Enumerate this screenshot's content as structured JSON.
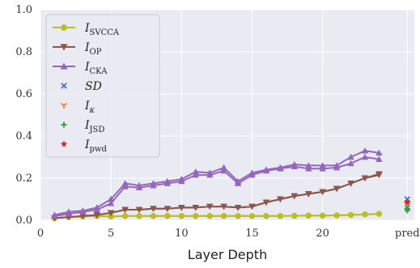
{
  "chart_data": {
    "type": "line",
    "xlabel": "Layer Depth",
    "ylabel": "",
    "xlim": [
      0,
      26.5
    ],
    "ylim": [
      0,
      1.0
    ],
    "x_ticks": [
      "0",
      "5",
      "10",
      "15",
      "20"
    ],
    "extra_x_tick": {
      "position": 26,
      "label": "pred"
    },
    "y_ticks": [
      "0.0",
      "0.2",
      "0.4",
      "0.6",
      "0.8",
      "1.0"
    ],
    "grid": true,
    "background": "#eaeaf2",
    "legend_position": "top-left",
    "series": [
      {
        "name_main": "I",
        "name_sub": "SVCCA",
        "color": "#bcbd22",
        "marker": "circle",
        "x": [
          1,
          2,
          3,
          4,
          5,
          6,
          7,
          8,
          9,
          10,
          11,
          12,
          13,
          14,
          15,
          16,
          17,
          18,
          19,
          20,
          21,
          22,
          23,
          24
        ],
        "values": [
          [
            0.01,
            0.01
          ],
          [
            0.015,
            0.015
          ],
          [
            0.018,
            0.018
          ],
          [
            0.02,
            0.02
          ],
          [
            0.018,
            0.018
          ],
          [
            0.02,
            0.02
          ],
          [
            0.02,
            0.02
          ],
          [
            0.02,
            0.02
          ],
          [
            0.02,
            0.02
          ],
          [
            0.02,
            0.02
          ],
          [
            0.02,
            0.02
          ],
          [
            0.02,
            0.02
          ],
          [
            0.02,
            0.02
          ],
          [
            0.02,
            0.02
          ],
          [
            0.02,
            0.02
          ],
          [
            0.02,
            0.02
          ],
          [
            0.02,
            0.02
          ],
          [
            0.021,
            0.021
          ],
          [
            0.022,
            0.022
          ],
          [
            0.022,
            0.022
          ],
          [
            0.023,
            0.023
          ],
          [
            0.025,
            0.025
          ],
          [
            0.028,
            0.028
          ],
          [
            0.03,
            0.03
          ]
        ]
      },
      {
        "name_main": "I",
        "name_sub": "OP",
        "color": "#8c564b",
        "marker": "triangle-down",
        "x": [
          1,
          2,
          3,
          4,
          5,
          6,
          7,
          8,
          9,
          10,
          11,
          12,
          13,
          14,
          15,
          16,
          17,
          18,
          19,
          20,
          21,
          22,
          23,
          24
        ],
        "values": [
          [
            0.01,
            0.01
          ],
          [
            0.015,
            0.015
          ],
          [
            0.02,
            0.02
          ],
          [
            0.025,
            0.025
          ],
          [
            0.035,
            0.035
          ],
          [
            0.05,
            0.05
          ],
          [
            0.05,
            0.05
          ],
          [
            0.055,
            0.055
          ],
          [
            0.055,
            0.055
          ],
          [
            0.06,
            0.06
          ],
          [
            0.06,
            0.06
          ],
          [
            0.065,
            0.065
          ],
          [
            0.065,
            0.065
          ],
          [
            0.06,
            0.06
          ],
          [
            0.065,
            0.065
          ],
          [
            0.085,
            0.085
          ],
          [
            0.1,
            0.1
          ],
          [
            0.115,
            0.115
          ],
          [
            0.125,
            0.125
          ],
          [
            0.135,
            0.135
          ],
          [
            0.15,
            0.15
          ],
          [
            0.175,
            0.175
          ],
          [
            0.2,
            0.2
          ],
          [
            0.215,
            0.22
          ]
        ]
      },
      {
        "name_main": "I",
        "name_sub": "CKA",
        "color": "#9467bd",
        "marker": "triangle-up",
        "x": [
          1,
          2,
          3,
          4,
          5,
          6,
          7,
          8,
          9,
          10,
          11,
          12,
          13,
          14,
          15,
          16,
          17,
          18,
          19,
          20,
          21,
          22,
          23,
          24
        ],
        "values": [
          [
            0.02,
            0.025
          ],
          [
            0.03,
            0.04
          ],
          [
            0.04,
            0.045
          ],
          [
            0.05,
            0.06
          ],
          [
            0.08,
            0.1
          ],
          [
            0.16,
            0.175
          ],
          [
            0.155,
            0.165
          ],
          [
            0.165,
            0.175
          ],
          [
            0.175,
            0.185
          ],
          [
            0.185,
            0.195
          ],
          [
            0.215,
            0.23
          ],
          [
            0.215,
            0.225
          ],
          [
            0.235,
            0.25
          ],
          [
            0.175,
            0.185
          ],
          [
            0.215,
            0.225
          ],
          [
            0.235,
            0.24
          ],
          [
            0.245,
            0.25
          ],
          [
            0.255,
            0.265
          ],
          [
            0.245,
            0.26
          ],
          [
            0.245,
            0.26
          ],
          [
            0.25,
            0.26
          ],
          [
            0.27,
            0.3
          ],
          [
            0.3,
            0.33
          ],
          [
            0.29,
            0.32
          ]
        ]
      }
    ],
    "pred_points": [
      {
        "name_main": "SD",
        "name_sub": "",
        "italic": true,
        "color": "#4472c4",
        "marker": "x",
        "value": 0.1
      },
      {
        "name_main": "I",
        "name_sub": "κ",
        "italic": false,
        "color": "#ff7f0e",
        "marker": "tri",
        "value": 0.075
      },
      {
        "name_main": "I",
        "name_sub": "JSD",
        "italic": false,
        "color": "#2ca02c",
        "marker": "plus",
        "value": 0.055
      },
      {
        "name_main": "I",
        "name_sub": "pwd",
        "italic": false,
        "color": "#d62728",
        "marker": "star",
        "value": 0.085
      }
    ],
    "pred_extra": [
      {
        "color": "#2ca02c",
        "marker": "plus",
        "value": 0.045
      },
      {
        "color": "#4472c4",
        "marker": "x",
        "value": 0.06
      }
    ]
  }
}
